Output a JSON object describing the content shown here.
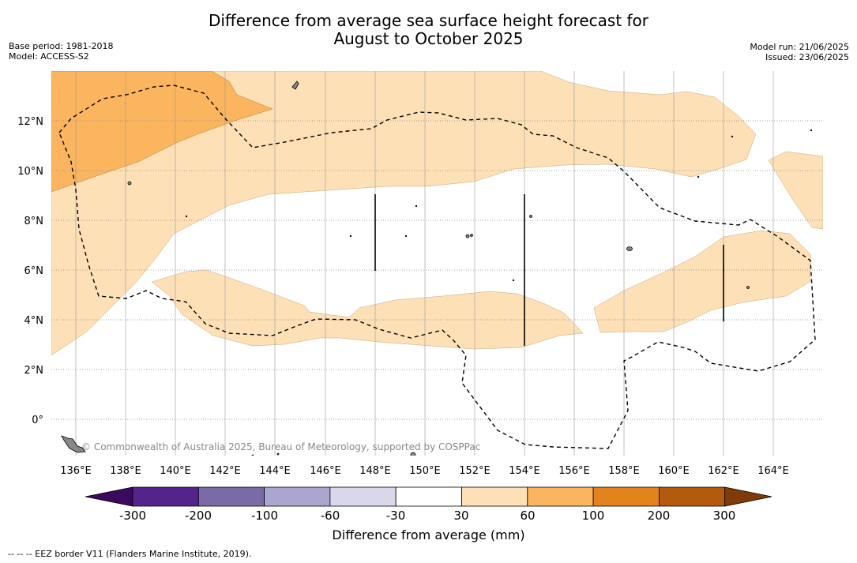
{
  "title_line1": "Difference from average sea surface height forecast for",
  "title_line2": "August to October 2025",
  "meta": {
    "base_period": "Base period: 1981-2018",
    "model": "Model: ACCESS-S2",
    "model_run": "Model run: 21/06/2025",
    "issued": "Issued: 23/06/2025"
  },
  "map": {
    "lon_labels": [
      "136°E",
      "138°E",
      "140°E",
      "142°E",
      "144°E",
      "146°E",
      "148°E",
      "150°E",
      "152°E",
      "154°E",
      "156°E",
      "158°E",
      "160°E",
      "162°E",
      "164°E"
    ],
    "lat_labels": [
      "12°N",
      "10°N",
      "8°N",
      "6°N",
      "4°N",
      "2°N",
      "0°"
    ],
    "lon_range": [
      135.0,
      165.9
    ],
    "lat_range": [
      -1.5,
      13.9
    ],
    "copyright": "© Commonwealth of Australia 2025, Bureau of Meteorology, supported by COSPPac"
  },
  "colorbar": {
    "label": "Difference from average (mm)",
    "tick_labels": [
      "-300",
      "-200",
      "-100",
      "-60",
      "-30",
      "30",
      "60",
      "100",
      "200",
      "300"
    ],
    "colors": [
      "#3b0a5c",
      "#55248a",
      "#7b6aa8",
      "#aba6cf",
      "#d8d8ea",
      "#ffffff",
      "#fde0b6",
      "#fbb55e",
      "#e2831b",
      "#b35a0d",
      "#7f3b08"
    ]
  },
  "footnote": "--  --  -- EEZ border V11 (Flanders Marine Institute, 2019)."
}
